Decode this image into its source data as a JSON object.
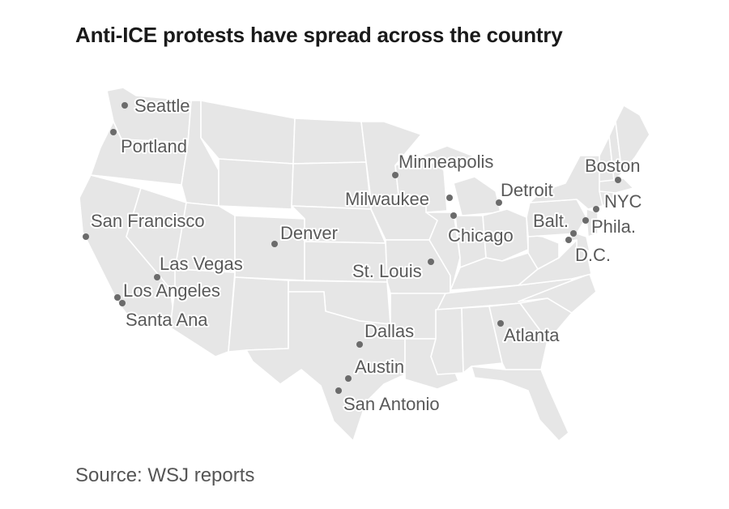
{
  "title": "Anti-ICE protests have spread across the country",
  "source": "Source: WSJ reports",
  "colors": {
    "land": "#e6e6e6",
    "borders": "#ffffff",
    "dot": "#6b6b6b",
    "label": "#595959"
  },
  "cities": [
    {
      "id": "seattle",
      "label": "Seattle"
    },
    {
      "id": "portland",
      "label": "Portland"
    },
    {
      "id": "san-francisco",
      "label": "San Francisco"
    },
    {
      "id": "las-vegas",
      "label": "Las Vegas"
    },
    {
      "id": "los-angeles",
      "label": "Los Angeles"
    },
    {
      "id": "santa-ana",
      "label": "Santa Ana"
    },
    {
      "id": "denver",
      "label": "Denver"
    },
    {
      "id": "minneapolis",
      "label": "Minneapolis"
    },
    {
      "id": "milwaukee",
      "label": "Milwaukee"
    },
    {
      "id": "chicago",
      "label": "Chicago"
    },
    {
      "id": "detroit",
      "label": "Detroit"
    },
    {
      "id": "st-louis",
      "label": "St. Louis"
    },
    {
      "id": "dallas",
      "label": "Dallas"
    },
    {
      "id": "austin",
      "label": "Austin"
    },
    {
      "id": "san-antonio",
      "label": "San Antonio"
    },
    {
      "id": "atlanta",
      "label": "Atlanta"
    },
    {
      "id": "boston",
      "label": "Boston"
    },
    {
      "id": "nyc",
      "label": "NYC"
    },
    {
      "id": "phila",
      "label": "Phila."
    },
    {
      "id": "balt",
      "label": "Balt."
    },
    {
      "id": "dc",
      "label": "D.C."
    }
  ]
}
